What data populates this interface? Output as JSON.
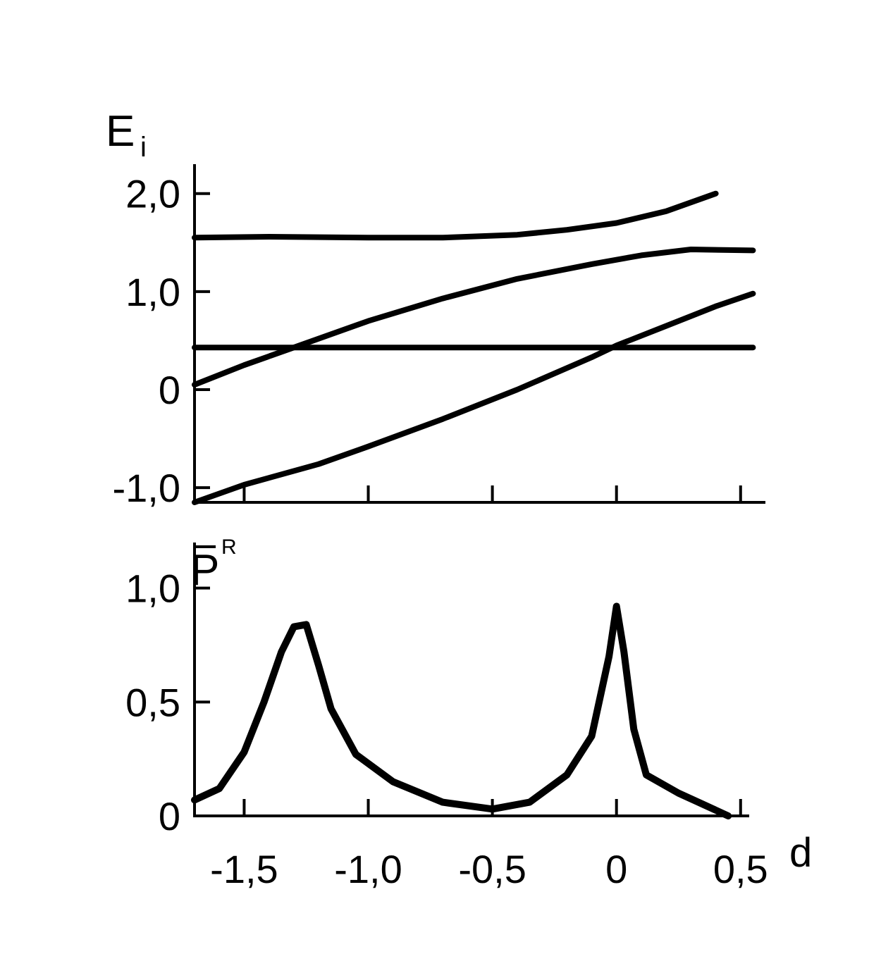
{
  "chart_data": [
    {
      "type": "line",
      "ylabel": "E",
      "ylabel_sub": "i",
      "xlim": [
        -1.7,
        0.6
      ],
      "ylim": [
        -1.15,
        2.3
      ],
      "yticks": [
        -1.0,
        0,
        1.0,
        2.0
      ],
      "yticklabels": [
        "-1,0",
        "0",
        "1,0",
        "2,0"
      ],
      "xticks": [
        -1.5,
        -1.0,
        -0.5,
        0,
        0.5
      ],
      "grid": false,
      "series": [
        {
          "values": [
            [
              -1.7,
              1.55
            ],
            [
              -1.4,
              1.56
            ],
            [
              -1.0,
              1.55
            ],
            [
              -0.7,
              1.55
            ],
            [
              -0.4,
              1.58
            ],
            [
              -0.2,
              1.63
            ],
            [
              0.0,
              1.7
            ],
            [
              0.2,
              1.82
            ],
            [
              0.4,
              2.0
            ]
          ]
        },
        {
          "values": [
            [
              -1.7,
              0.05
            ],
            [
              -1.5,
              0.25
            ],
            [
              -1.3,
              0.43
            ],
            [
              -1.0,
              0.7
            ],
            [
              -0.7,
              0.93
            ],
            [
              -0.4,
              1.13
            ],
            [
              -0.1,
              1.28
            ],
            [
              0.1,
              1.37
            ],
            [
              0.3,
              1.43
            ],
            [
              0.55,
              1.42
            ]
          ]
        },
        {
          "values": [
            [
              -1.7,
              0.43
            ],
            [
              -1.0,
              0.43
            ],
            [
              -0.5,
              0.43
            ],
            [
              0.0,
              0.43
            ],
            [
              0.55,
              0.43
            ]
          ]
        },
        {
          "values": [
            [
              -1.7,
              -1.15
            ],
            [
              -1.5,
              -0.97
            ],
            [
              -1.2,
              -0.76
            ],
            [
              -1.0,
              -0.58
            ],
            [
              -0.7,
              -0.3
            ],
            [
              -0.4,
              0.0
            ],
            [
              -0.1,
              0.33
            ],
            [
              0.0,
              0.45
            ],
            [
              0.2,
              0.65
            ],
            [
              0.4,
              0.85
            ],
            [
              0.55,
              0.98
            ]
          ]
        }
      ]
    },
    {
      "type": "line",
      "ylabel": "P",
      "ylabel_sup": "R",
      "xlabel": "d",
      "xlim": [
        -1.7,
        0.6
      ],
      "ylim": [
        0,
        1.2
      ],
      "yticks": [
        0,
        0.5,
        1.0
      ],
      "yticklabels": [
        "0",
        "0,5",
        "1,0"
      ],
      "xticks": [
        -1.5,
        -1.0,
        -0.5,
        0,
        0.5
      ],
      "xticklabels": [
        "-1,5",
        "-1,0",
        "-0,5",
        "0",
        "0,5"
      ],
      "grid": false,
      "series": [
        {
          "values": [
            [
              -1.7,
              0.07
            ],
            [
              -1.6,
              0.12
            ],
            [
              -1.5,
              0.28
            ],
            [
              -1.42,
              0.5
            ],
            [
              -1.35,
              0.72
            ],
            [
              -1.3,
              0.83
            ],
            [
              -1.25,
              0.84
            ],
            [
              -1.2,
              0.66
            ],
            [
              -1.15,
              0.47
            ],
            [
              -1.05,
              0.27
            ],
            [
              -0.9,
              0.15
            ],
            [
              -0.7,
              0.06
            ],
            [
              -0.5,
              0.03
            ],
            [
              -0.35,
              0.06
            ],
            [
              -0.2,
              0.18
            ],
            [
              -0.1,
              0.35
            ],
            [
              -0.03,
              0.7
            ],
            [
              0.0,
              0.92
            ],
            [
              0.03,
              0.72
            ],
            [
              0.07,
              0.38
            ],
            [
              0.12,
              0.18
            ],
            [
              0.25,
              0.1
            ],
            [
              0.35,
              0.05
            ],
            [
              0.45,
              0.0
            ]
          ]
        }
      ]
    }
  ]
}
